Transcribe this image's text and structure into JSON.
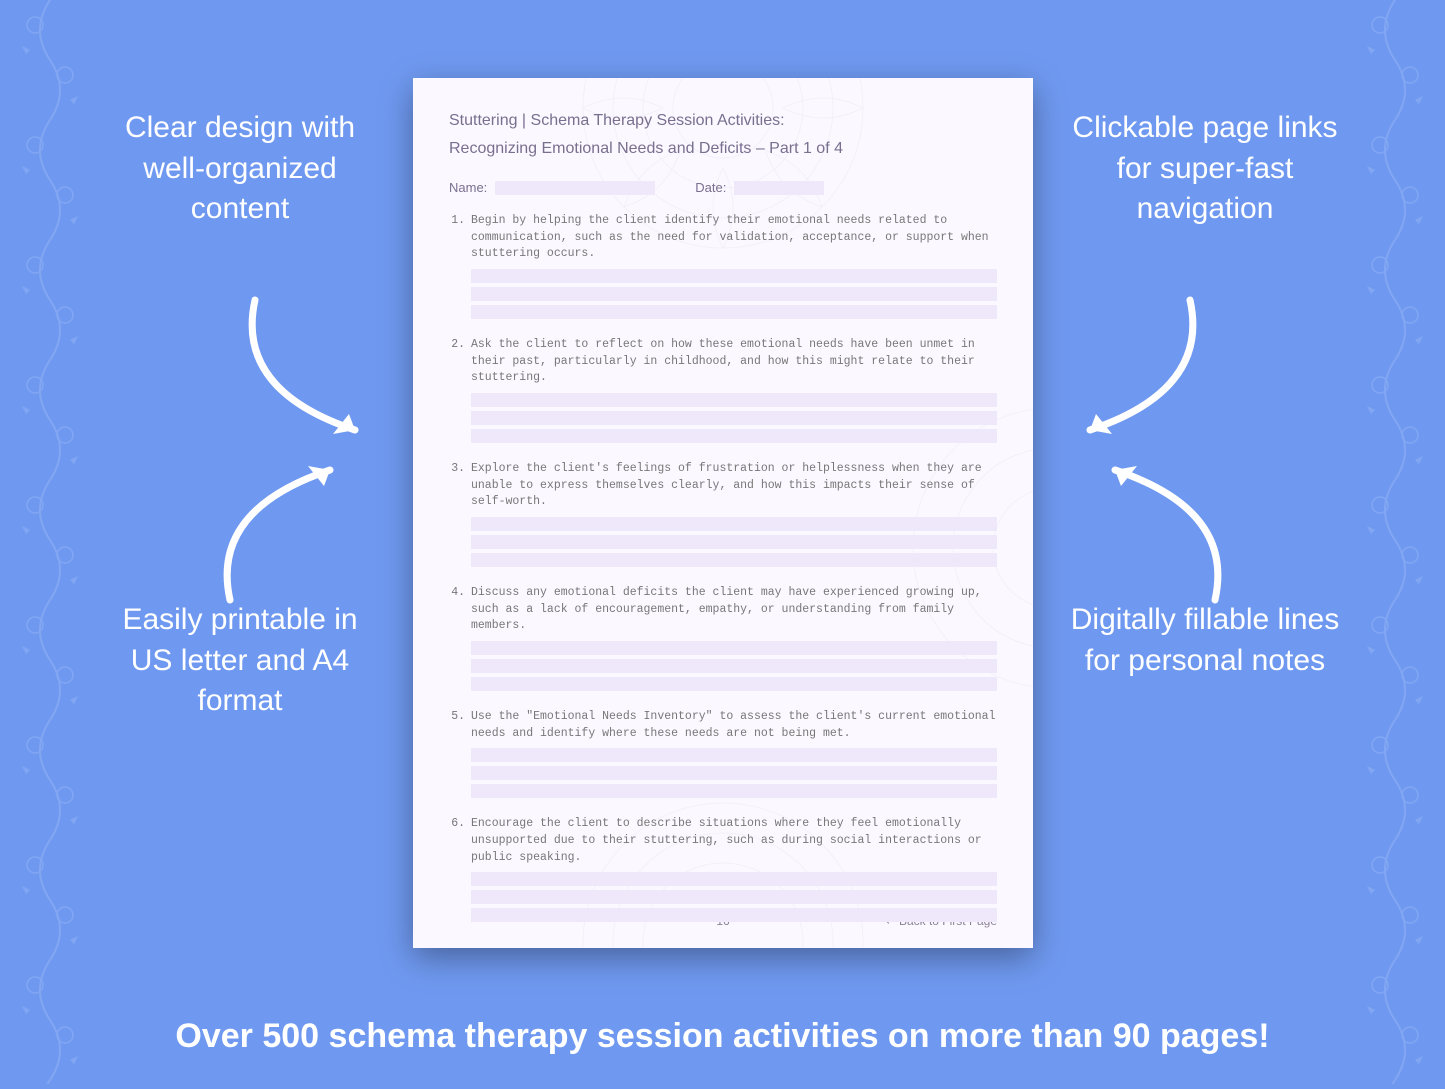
{
  "colors": {
    "background": "#6f99f0",
    "callout_text": "#ffffff",
    "arrow": "#ffffff",
    "banner_text": "#ffffff",
    "doc_bg": "#fbf8ff",
    "doc_title": "#7a6f8f",
    "doc_body": "#777777",
    "fill_line": "#efe8fb",
    "mandala": "#b8aee0",
    "side_pattern": "#a8c1f7"
  },
  "callouts": {
    "top_left": "Clear design with well-organized content",
    "top_right": "Clickable page links for super-fast navigation",
    "bottom_left": "Easily printable in US letter and A4 format",
    "bottom_right": "Digitally fillable lines for personal notes"
  },
  "banner": "Over 500 schema therapy session activities on more than 90 pages!",
  "document": {
    "title_line1": "Stuttering | Schema Therapy Session Activities:",
    "title_line2": "Recognizing Emotional Needs and Deficits  – Part 1 of 4",
    "name_label": "Name:",
    "date_label": "Date:",
    "items": [
      "Begin by helping the client identify their emotional needs related to communication, such as the need for validation, acceptance, or support when stuttering occurs.",
      "Ask the client to reflect on how these emotional needs have been unmet in their past, particularly in childhood, and how this might relate to their stuttering.",
      "Explore the client's feelings of frustration or helplessness when they are unable to express themselves clearly, and how this impacts their sense of self-worth.",
      "Discuss any emotional deficits the client may have experienced growing up, such as a lack of encouragement, empathy, or understanding from family members.",
      "Use the \"Emotional Needs Inventory\" to assess the client's current emotional needs and identify where these needs are not being met.",
      "Encourage the client to describe situations where they feel emotionally unsupported due to their stuttering, such as during social interactions or public speaking."
    ],
    "page_number": "16",
    "back_link": "↵ Back to First Page",
    "fill_lines_per_item": 3
  },
  "typography": {
    "callout_fontsize": 30,
    "banner_fontsize": 34,
    "doc_title_fontsize": 16,
    "doc_body_fontsize": 11.5,
    "doc_body_font": "Courier New"
  }
}
